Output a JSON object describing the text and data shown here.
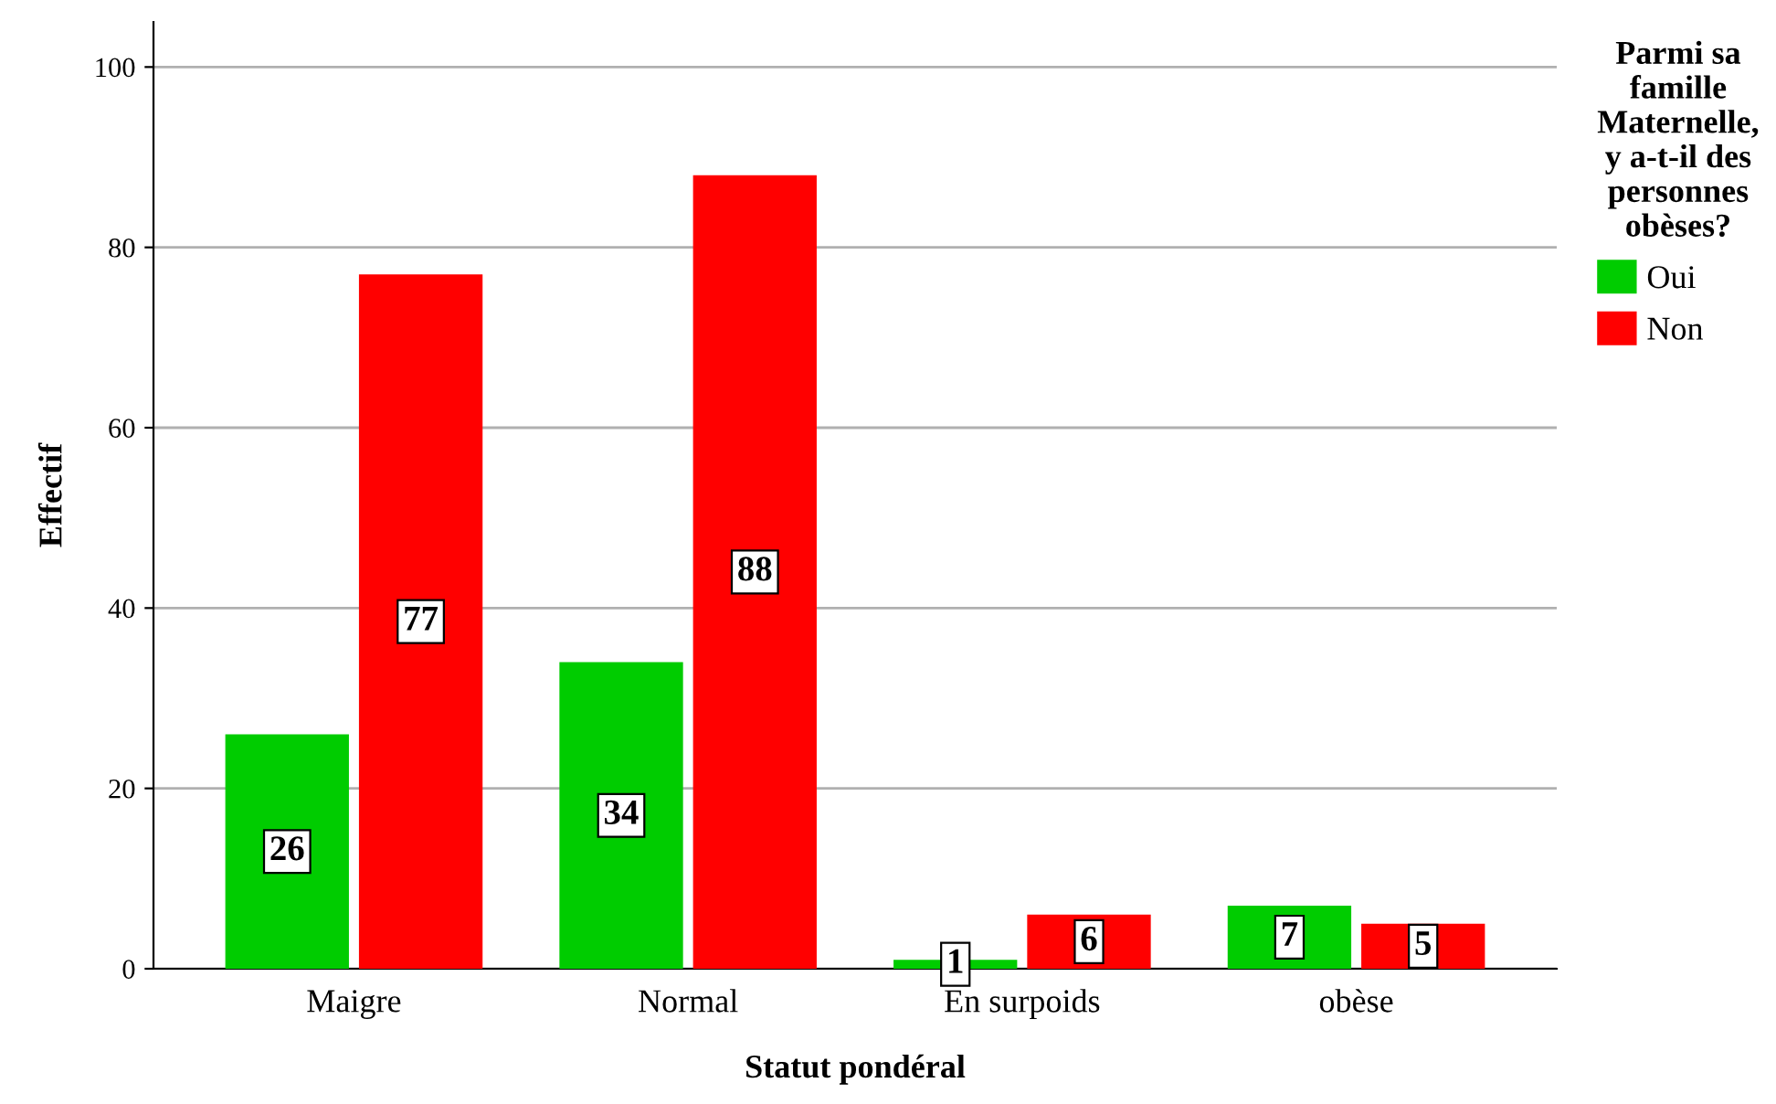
{
  "chart_data": {
    "type": "bar",
    "xlabel": "Statut pondéral",
    "ylabel": "Effectif",
    "legend_title": "Parmi sa\nfamille\nMaternelle,\ny a-t-il des\npersonnes\nobèses?",
    "categories": [
      "Maigre",
      "Normal",
      "En surpoids",
      "obèse"
    ],
    "series": [
      {
        "name": "Oui",
        "color": "#00cc00",
        "values": [
          26,
          34,
          1,
          7
        ]
      },
      {
        "name": "Non",
        "color": "#ff0000",
        "values": [
          77,
          88,
          6,
          5
        ]
      }
    ],
    "ylim": [
      0,
      105
    ],
    "yticks": [
      0,
      20,
      40,
      60,
      80,
      100
    ],
    "grid": "y",
    "legend": "top right",
    "data_labels": true
  }
}
